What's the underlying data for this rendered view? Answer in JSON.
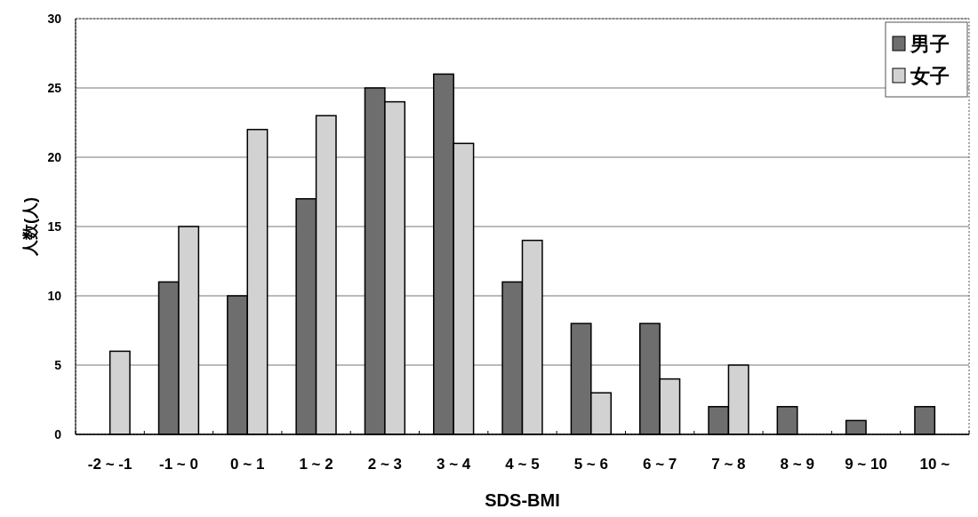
{
  "chart_data": {
    "type": "bar",
    "xlabel": "SDS-BMI",
    "ylabel": "人数(人)",
    "categories": [
      "-2 ~ -1",
      "-1 ~ 0",
      "0 ~ 1",
      "1 ~ 2",
      "2 ~ 3",
      "3 ~ 4",
      "4 ~ 5",
      "5 ~ 6",
      "6 ~ 7",
      "7 ~ 8",
      "8 ~ 9",
      "9 ~ 10",
      "10 ~"
    ],
    "series": [
      {
        "name": "男子",
        "color": "#6e6e6e",
        "values": [
          0,
          11,
          10,
          17,
          25,
          26,
          11,
          8,
          8,
          2,
          2,
          1,
          2
        ]
      },
      {
        "name": "女子",
        "color": "#d2d2d2",
        "values": [
          6,
          15,
          22,
          23,
          24,
          21,
          14,
          3,
          4,
          5,
          0,
          0,
          0
        ]
      }
    ],
    "ylim": [
      0,
      30
    ],
    "yticks": [
      0,
      5,
      10,
      15,
      20,
      25,
      30
    ],
    "grid": "y",
    "legend": "top right"
  }
}
